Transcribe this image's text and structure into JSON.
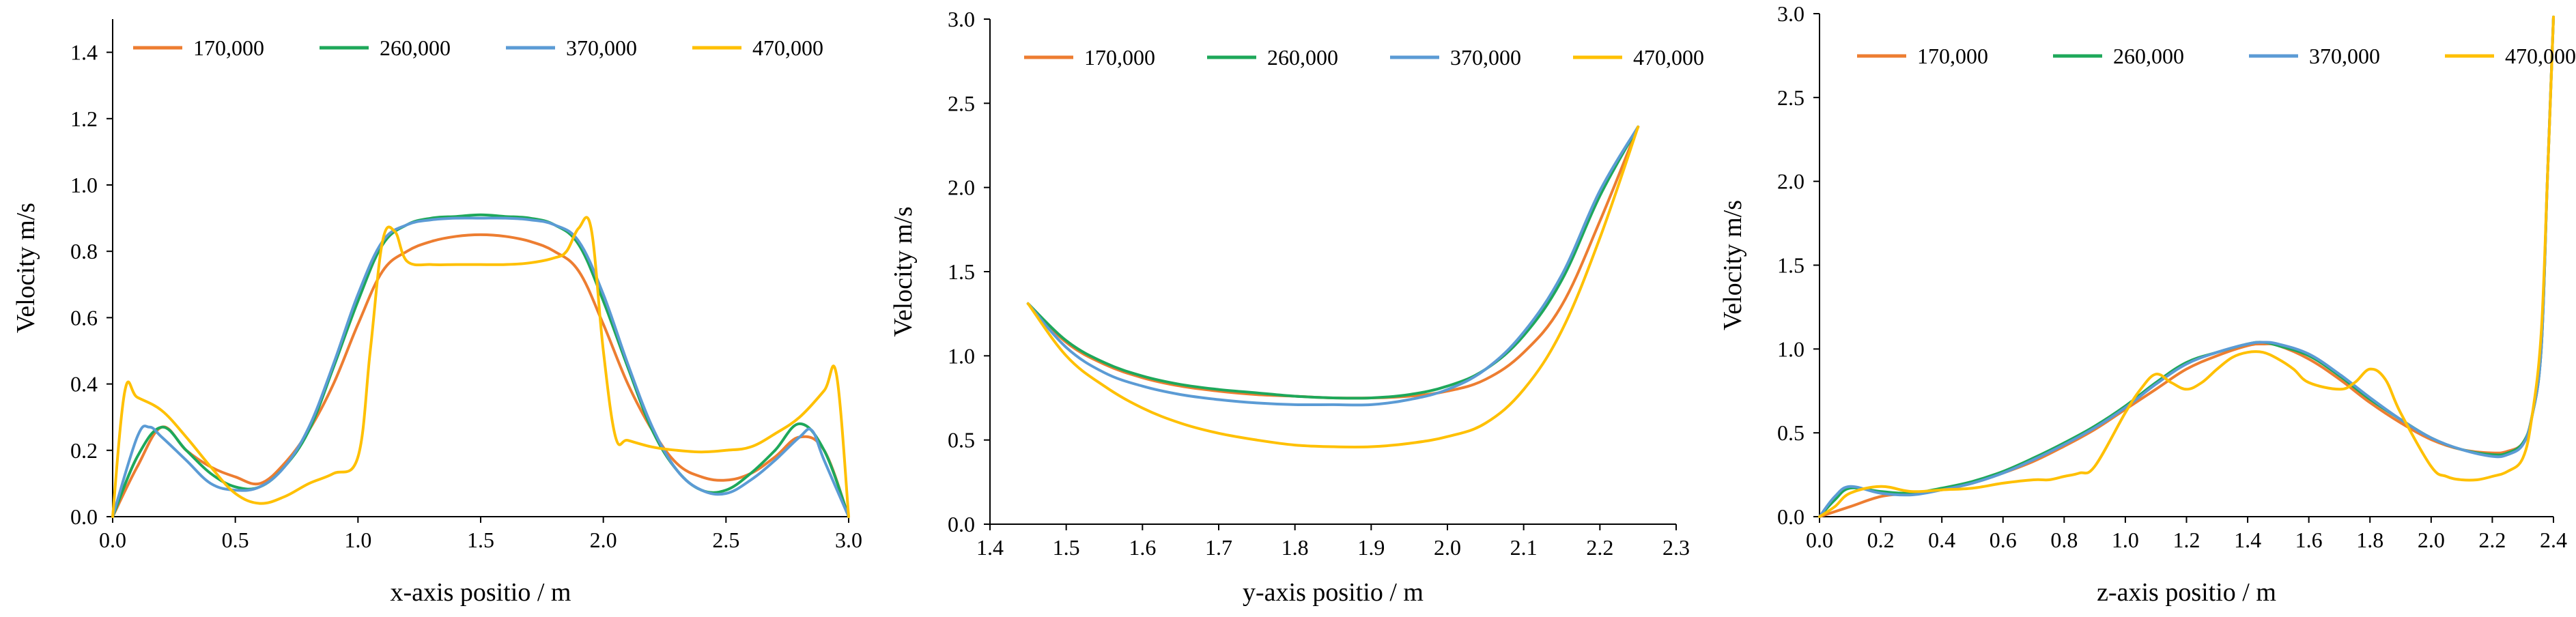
{
  "series_colors": {
    "170,000": "#ed7d31",
    "260,000": "#1ea85a",
    "370,000": "#5b9bd5",
    "470,000": "#ffc000"
  },
  "chart_data": [
    {
      "type": "line",
      "title": "",
      "xlabel": "x-axis positio / m",
      "ylabel": "Velocity  m/s",
      "xlim": [
        0,
        3
      ],
      "ylim": [
        0,
        1.5
      ],
      "xticks": [
        0,
        0.5,
        1,
        1.5,
        2,
        2.5,
        3
      ],
      "xtick_labels": [
        "0.0",
        "0.5",
        "1.0",
        "1.5",
        "2.0",
        "2.5",
        "3.0"
      ],
      "yticks": [
        0,
        0.2,
        0.4,
        0.6,
        0.8,
        1,
        1.2,
        1.4
      ],
      "ytick_labels": [
        "0.0",
        "0.2",
        "0.4",
        "0.6",
        "0.8",
        "1.0",
        "1.2",
        "1.4"
      ],
      "legend": "top",
      "series": [
        {
          "name": "170,000",
          "x": [
            0,
            0.1,
            0.2,
            0.3,
            0.4,
            0.5,
            0.6,
            0.7,
            0.8,
            0.9,
            1.0,
            1.1,
            1.2,
            1.3,
            1.4,
            1.5,
            1.6,
            1.7,
            1.8,
            1.9,
            2.0,
            2.1,
            2.2,
            2.3,
            2.4,
            2.5,
            2.6,
            2.7,
            2.8,
            2.9,
            3.0
          ],
          "y": [
            0,
            0.15,
            0.27,
            0.2,
            0.15,
            0.12,
            0.1,
            0.16,
            0.26,
            0.4,
            0.58,
            0.74,
            0.8,
            0.83,
            0.845,
            0.85,
            0.845,
            0.83,
            0.8,
            0.74,
            0.58,
            0.4,
            0.26,
            0.16,
            0.12,
            0.11,
            0.13,
            0.18,
            0.24,
            0.2,
            0
          ]
        },
        {
          "name": "260,000",
          "x": [
            0,
            0.1,
            0.2,
            0.3,
            0.4,
            0.5,
            0.6,
            0.7,
            0.8,
            0.9,
            1.0,
            1.1,
            1.2,
            1.3,
            1.4,
            1.5,
            1.6,
            1.7,
            1.8,
            1.9,
            2.0,
            2.1,
            2.2,
            2.3,
            2.4,
            2.5,
            2.6,
            2.7,
            2.8,
            2.9,
            3.0
          ],
          "y": [
            0,
            0.18,
            0.27,
            0.2,
            0.13,
            0.09,
            0.09,
            0.15,
            0.26,
            0.45,
            0.65,
            0.82,
            0.88,
            0.9,
            0.905,
            0.91,
            0.905,
            0.9,
            0.88,
            0.82,
            0.65,
            0.45,
            0.26,
            0.14,
            0.08,
            0.08,
            0.13,
            0.2,
            0.28,
            0.2,
            0
          ]
        },
        {
          "name": "370,000",
          "x": [
            0,
            0.1,
            0.15,
            0.2,
            0.3,
            0.4,
            0.5,
            0.6,
            0.7,
            0.8,
            0.9,
            1.0,
            1.1,
            1.2,
            1.3,
            1.4,
            1.5,
            1.6,
            1.7,
            1.8,
            1.9,
            2.0,
            2.1,
            2.2,
            2.3,
            2.4,
            2.5,
            2.6,
            2.7,
            2.8,
            2.85,
            2.9,
            3.0
          ],
          "y": [
            0,
            0.24,
            0.27,
            0.24,
            0.17,
            0.1,
            0.08,
            0.09,
            0.15,
            0.27,
            0.46,
            0.67,
            0.83,
            0.88,
            0.895,
            0.9,
            0.9,
            0.9,
            0.895,
            0.88,
            0.83,
            0.67,
            0.46,
            0.27,
            0.14,
            0.08,
            0.07,
            0.11,
            0.17,
            0.24,
            0.26,
            0.17,
            0
          ]
        },
        {
          "name": "470,000",
          "x": [
            0,
            0.05,
            0.1,
            0.2,
            0.3,
            0.4,
            0.5,
            0.6,
            0.7,
            0.8,
            0.9,
            1.0,
            1.05,
            1.1,
            1.15,
            1.2,
            1.3,
            1.4,
            1.5,
            1.6,
            1.7,
            1.8,
            1.85,
            1.9,
            1.95,
            2.0,
            2.05,
            2.1,
            2.2,
            2.3,
            2.4,
            2.5,
            2.6,
            2.7,
            2.8,
            2.9,
            2.95,
            3.0
          ],
          "y": [
            0,
            0.38,
            0.36,
            0.32,
            0.24,
            0.15,
            0.07,
            0.04,
            0.06,
            0.1,
            0.13,
            0.18,
            0.5,
            0.83,
            0.86,
            0.77,
            0.76,
            0.76,
            0.76,
            0.76,
            0.765,
            0.78,
            0.8,
            0.87,
            0.87,
            0.5,
            0.24,
            0.23,
            0.21,
            0.2,
            0.195,
            0.2,
            0.21,
            0.25,
            0.3,
            0.38,
            0.43,
            0
          ]
        }
      ]
    },
    {
      "type": "line",
      "title": "",
      "xlabel": "y-axis positio / m",
      "ylabel": "Velocity  m/s",
      "xlim": [
        1.4,
        2.3
      ],
      "ylim": [
        0,
        3
      ],
      "xticks": [
        1.4,
        1.5,
        1.6,
        1.7,
        1.8,
        1.9,
        2.0,
        2.1,
        2.2,
        2.3
      ],
      "xtick_labels": [
        "1.4",
        "1.5",
        "1.6",
        "1.7",
        "1.8",
        "1.9",
        "2.0",
        "2.1",
        "2.2",
        "2.3"
      ],
      "yticks": [
        0,
        0.5,
        1,
        1.5,
        2,
        2.5,
        3
      ],
      "ytick_labels": [
        "0.0",
        "0.5",
        "1.0",
        "1.5",
        "2.0",
        "2.5",
        "3.0"
      ],
      "legend": "top",
      "series": [
        {
          "name": "170,000",
          "x": [
            1.45,
            1.5,
            1.55,
            1.6,
            1.65,
            1.7,
            1.75,
            1.8,
            1.85,
            1.9,
            1.95,
            2.0,
            2.05,
            2.1,
            2.15,
            2.2,
            2.25
          ],
          "y": [
            1.31,
            1.08,
            0.95,
            0.87,
            0.82,
            0.79,
            0.77,
            0.76,
            0.75,
            0.75,
            0.76,
            0.79,
            0.86,
            1.02,
            1.3,
            1.8,
            2.36
          ]
        },
        {
          "name": "260,000",
          "x": [
            1.45,
            1.5,
            1.55,
            1.6,
            1.65,
            1.7,
            1.75,
            1.8,
            1.85,
            1.9,
            1.95,
            2.0,
            2.05,
            2.1,
            2.15,
            2.2,
            2.25
          ],
          "y": [
            1.31,
            1.09,
            0.96,
            0.88,
            0.83,
            0.8,
            0.78,
            0.76,
            0.75,
            0.75,
            0.77,
            0.82,
            0.92,
            1.12,
            1.45,
            1.95,
            2.36
          ]
        },
        {
          "name": "370,000",
          "x": [
            1.45,
            1.5,
            1.55,
            1.6,
            1.65,
            1.7,
            1.75,
            1.8,
            1.85,
            1.9,
            1.95,
            2.0,
            2.05,
            2.1,
            2.15,
            2.2,
            2.25
          ],
          "y": [
            1.31,
            1.05,
            0.9,
            0.82,
            0.77,
            0.74,
            0.72,
            0.71,
            0.71,
            0.71,
            0.74,
            0.8,
            0.92,
            1.14,
            1.48,
            1.98,
            2.36
          ]
        },
        {
          "name": "470,000",
          "x": [
            1.45,
            1.5,
            1.55,
            1.6,
            1.65,
            1.7,
            1.75,
            1.8,
            1.85,
            1.9,
            1.95,
            2.0,
            2.05,
            2.1,
            2.15,
            2.2,
            2.25
          ],
          "y": [
            1.31,
            1.0,
            0.82,
            0.69,
            0.6,
            0.54,
            0.5,
            0.47,
            0.46,
            0.46,
            0.48,
            0.52,
            0.6,
            0.8,
            1.15,
            1.7,
            2.36
          ]
        }
      ]
    },
    {
      "type": "line",
      "title": "",
      "xlabel": "z-axis positio / m",
      "ylabel": "Velocity  m/s",
      "xlim": [
        0,
        2.4
      ],
      "ylim": [
        0,
        3
      ],
      "xticks": [
        0,
        0.2,
        0.4,
        0.6,
        0.8,
        1,
        1.2,
        1.4,
        1.6,
        1.8,
        2,
        2.2,
        2.4
      ],
      "xtick_labels": [
        "0.0",
        "0.2",
        "0.4",
        "0.6",
        "0.8",
        "1.0",
        "1.2",
        "1.4",
        "1.6",
        "1.8",
        "2.0",
        "2.2",
        "2.4"
      ],
      "yticks": [
        0,
        0.5,
        1,
        1.5,
        2,
        2.5,
        3
      ],
      "ytick_labels": [
        "0.0",
        "0.5",
        "1.0",
        "1.5",
        "2.0",
        "2.5",
        "3.0"
      ],
      "legend": "top",
      "series": [
        {
          "name": "170,000",
          "x": [
            0,
            0.1,
            0.2,
            0.3,
            0.4,
            0.5,
            0.6,
            0.7,
            0.8,
            0.9,
            1.0,
            1.1,
            1.2,
            1.3,
            1.4,
            1.45,
            1.5,
            1.6,
            1.7,
            1.8,
            1.9,
            2.0,
            2.1,
            2.2,
            2.25,
            2.3,
            2.33,
            2.36,
            2.38,
            2.4
          ],
          "y": [
            0,
            0.06,
            0.12,
            0.14,
            0.16,
            0.2,
            0.26,
            0.33,
            0.42,
            0.52,
            0.64,
            0.76,
            0.88,
            0.96,
            1.02,
            1.03,
            1.02,
            0.94,
            0.82,
            0.68,
            0.56,
            0.46,
            0.4,
            0.38,
            0.39,
            0.44,
            0.6,
            1.0,
            2.0,
            2.98
          ]
        },
        {
          "name": "260,000",
          "x": [
            0,
            0.05,
            0.1,
            0.2,
            0.3,
            0.4,
            0.5,
            0.6,
            0.7,
            0.8,
            0.9,
            1.0,
            1.1,
            1.2,
            1.3,
            1.4,
            1.45,
            1.5,
            1.6,
            1.7,
            1.8,
            1.9,
            2.0,
            2.1,
            2.2,
            2.25,
            2.3,
            2.33,
            2.36,
            2.38,
            2.4
          ],
          "y": [
            0,
            0.1,
            0.17,
            0.15,
            0.14,
            0.17,
            0.21,
            0.27,
            0.35,
            0.44,
            0.54,
            0.66,
            0.8,
            0.92,
            0.98,
            1.03,
            1.04,
            1.02,
            0.96,
            0.84,
            0.7,
            0.58,
            0.47,
            0.4,
            0.37,
            0.38,
            0.44,
            0.6,
            1.0,
            2.0,
            2.98
          ]
        },
        {
          "name": "370,000",
          "x": [
            0,
            0.05,
            0.1,
            0.2,
            0.3,
            0.4,
            0.5,
            0.6,
            0.7,
            0.8,
            0.9,
            1.0,
            1.1,
            1.2,
            1.3,
            1.4,
            1.45,
            1.5,
            1.6,
            1.7,
            1.8,
            1.9,
            2.0,
            2.1,
            2.2,
            2.25,
            2.3,
            2.33,
            2.36,
            2.38,
            2.4
          ],
          "y": [
            0,
            0.12,
            0.18,
            0.14,
            0.13,
            0.16,
            0.2,
            0.26,
            0.34,
            0.43,
            0.53,
            0.65,
            0.79,
            0.91,
            0.98,
            1.03,
            1.04,
            1.03,
            0.97,
            0.85,
            0.71,
            0.58,
            0.47,
            0.4,
            0.36,
            0.37,
            0.43,
            0.6,
            1.0,
            2.0,
            2.98
          ]
        },
        {
          "name": "470,000",
          "x": [
            0,
            0.05,
            0.1,
            0.2,
            0.3,
            0.4,
            0.5,
            0.6,
            0.7,
            0.75,
            0.8,
            0.85,
            0.9,
            1.0,
            1.05,
            1.1,
            1.15,
            1.2,
            1.25,
            1.3,
            1.35,
            1.4,
            1.45,
            1.5,
            1.55,
            1.6,
            1.7,
            1.75,
            1.8,
            1.85,
            1.9,
            2.0,
            2.05,
            2.1,
            2.15,
            2.2,
            2.25,
            2.3,
            2.33,
            2.36,
            2.38,
            2.4
          ],
          "y": [
            0,
            0.06,
            0.14,
            0.18,
            0.15,
            0.16,
            0.17,
            0.2,
            0.22,
            0.22,
            0.24,
            0.26,
            0.3,
            0.62,
            0.76,
            0.85,
            0.8,
            0.76,
            0.8,
            0.88,
            0.95,
            0.98,
            0.98,
            0.94,
            0.88,
            0.8,
            0.76,
            0.8,
            0.88,
            0.82,
            0.62,
            0.3,
            0.24,
            0.22,
            0.22,
            0.24,
            0.27,
            0.35,
            0.6,
            1.1,
            2.0,
            2.98
          ]
        }
      ]
    }
  ]
}
